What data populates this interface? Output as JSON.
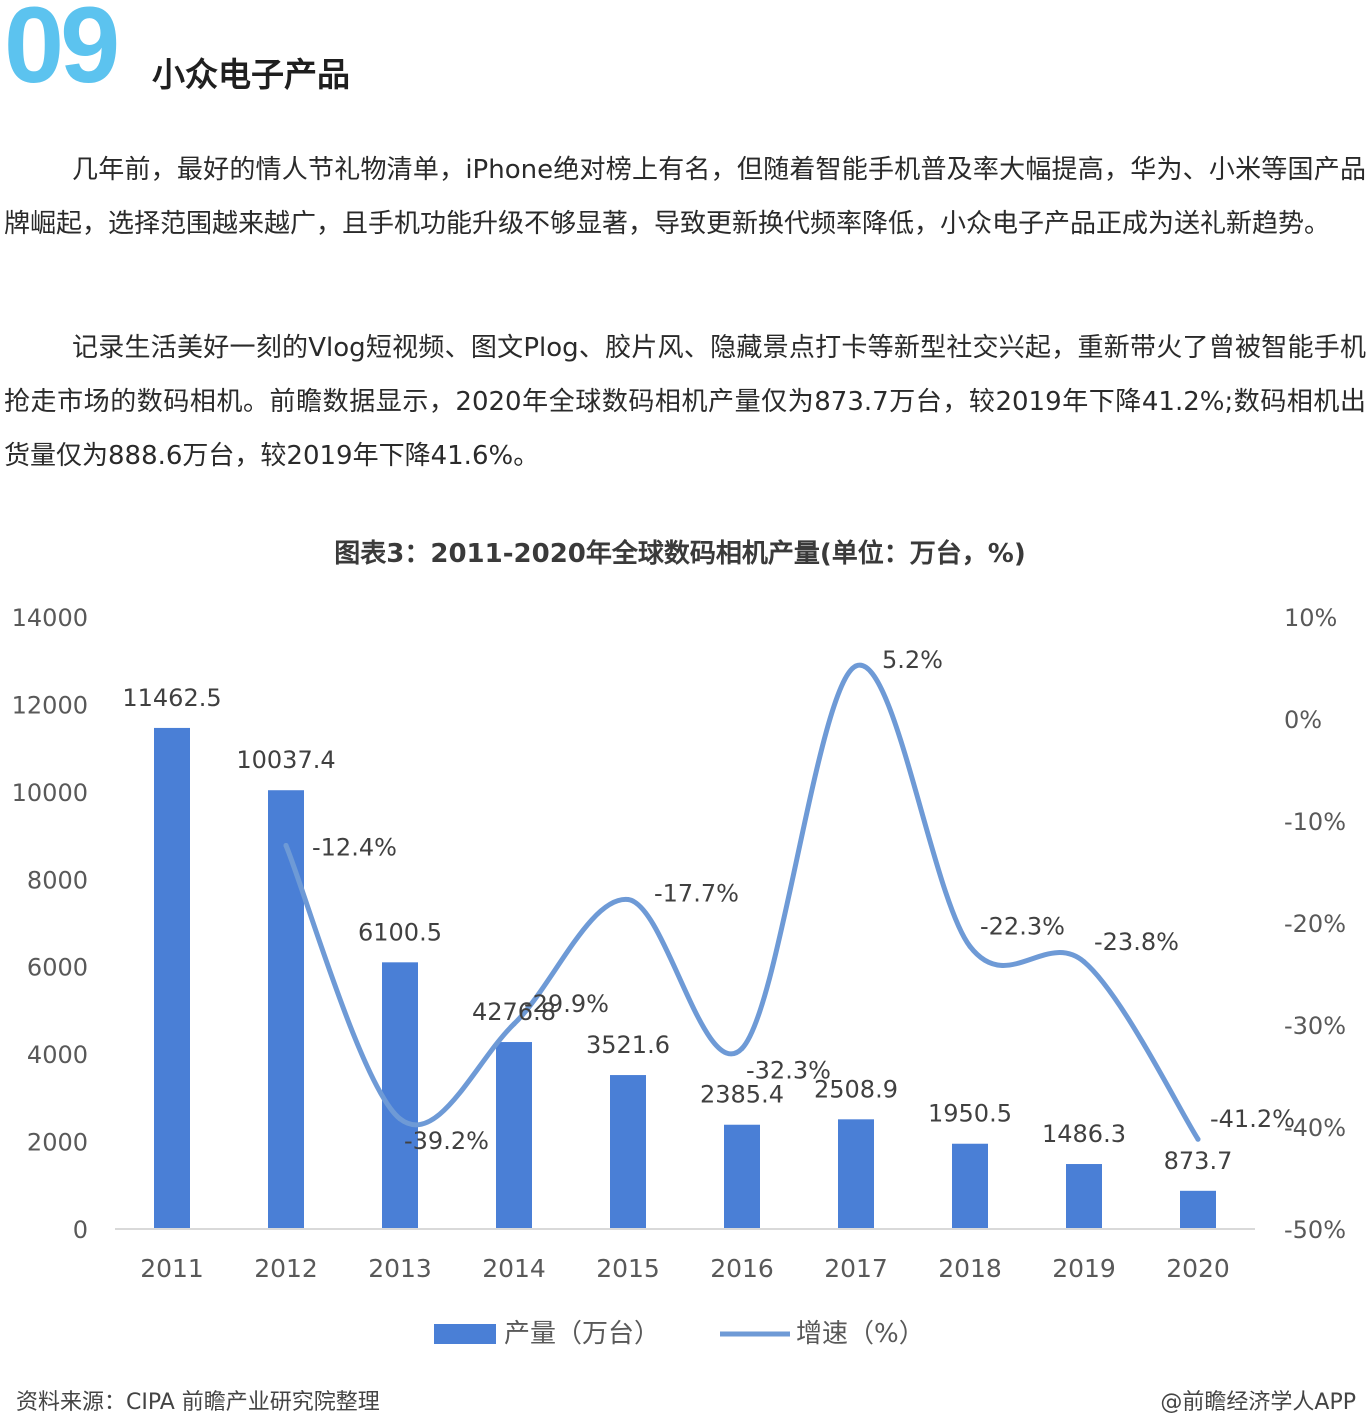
{
  "header": {
    "section_number": "09",
    "section_title": "小众电子产品"
  },
  "article": {
    "paragraph_1": "几年前，最好的情人节礼物清单，iPhone绝对榜上有名，但随着智能手机普及率大幅提高，华为、小米等国产品牌崛起，选择范围越来越广，且手机功能升级不够显著，导致更新换代频率降低，小众电子产品正成为送礼新趋势。",
    "paragraph_2": "记录生活美好一刻的Vlog短视频、图文Plog、胶片风、隐藏景点打卡等新型社交兴起，重新带火了曾被智能手机抢走市场的数码相机。前瞻数据显示，2020年全球数码相机产量仅为873.7万台，较2019年下降41.2%;数码相机出货量仅为888.6万台，较2019年下降41.6%。"
  },
  "chart_data": {
    "type": "bar",
    "title": "图表3：2011-2020年全球数码相机产量(单位：万台，%)",
    "categories": [
      "2011",
      "2012",
      "2013",
      "2014",
      "2015",
      "2016",
      "2017",
      "2018",
      "2019",
      "2020"
    ],
    "series": [
      {
        "name": "产量（万台）",
        "type": "bar",
        "axis": "left",
        "values": [
          11462.5,
          10037.4,
          6100.5,
          4276.8,
          3521.6,
          2385.4,
          2508.9,
          1950.5,
          1486.3,
          873.7
        ],
        "labels": [
          "11462.5",
          "10037.4",
          "6100.5",
          "4276.8",
          "3521.6",
          "2385.4",
          "2508.9",
          "1950.5",
          "1486.3",
          "873.7"
        ]
      },
      {
        "name": "增速（%）",
        "type": "line",
        "axis": "right",
        "smooth": true,
        "x": [
          "2012",
          "2013",
          "2014",
          "2015",
          "2016",
          "2017",
          "2018",
          "2019",
          "2020"
        ],
        "values": [
          -12.4,
          -39.2,
          -29.9,
          -17.7,
          -32.3,
          5.2,
          -22.3,
          -23.8,
          -41.2
        ],
        "labels": [
          "-12.4%",
          "-39.2%",
          "-29.9%",
          "-17.7%",
          "-32.3%",
          "5.2%",
          "-22.3%",
          "-23.8%",
          "-41.2%"
        ]
      }
    ],
    "y_left": {
      "ylim": [
        0,
        14000
      ],
      "ticks": [
        "0",
        "2000",
        "4000",
        "6000",
        "8000",
        "10000",
        "12000",
        "14000"
      ]
    },
    "y_right": {
      "ylim": [
        -50,
        10
      ],
      "ticks": [
        "-50%",
        "-40%",
        "-30%",
        "-20%",
        "-10%",
        "0%",
        "10%"
      ]
    },
    "grid": false,
    "legend_position": "bottom",
    "source": "资料来源：CIPA 前瞻产业研究院整理",
    "brand": "@前瞻经济学人APP",
    "colors": {
      "bar": "#4a7fd6",
      "line": "#6e9ad6",
      "tick_text": "#595959",
      "label_text": "#404040"
    }
  }
}
